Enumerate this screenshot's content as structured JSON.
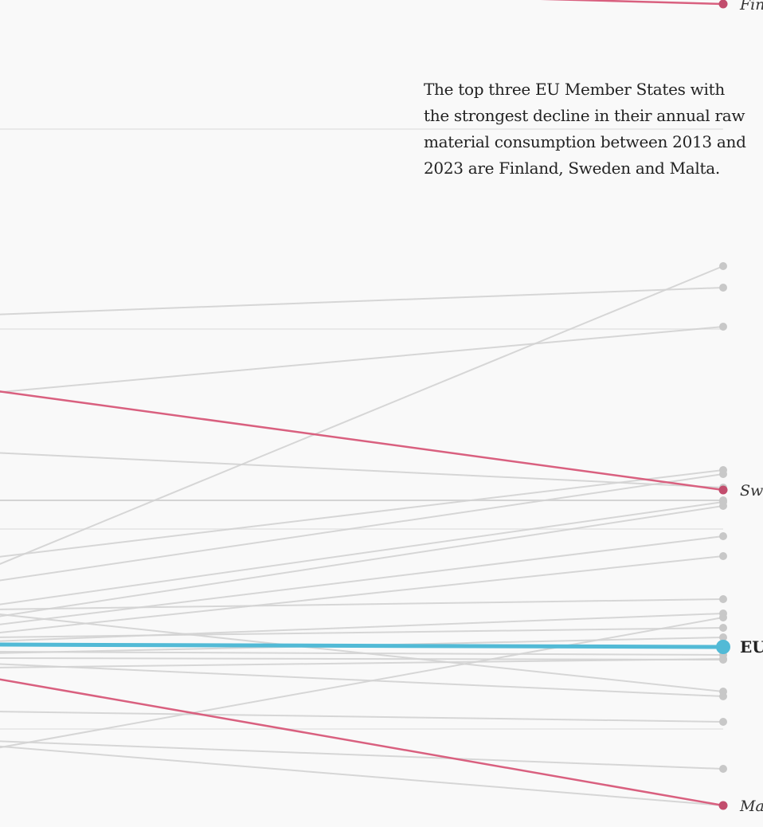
{
  "annotation": {
    "text": "The top three EU Member States with the strongest decline in their annual raw material consumption between 2013 and 2023 are Finland, Sweden and Malta."
  },
  "colors": {
    "background": "#f9f9f9",
    "highlight": "#d9607f",
    "eu": "#52bad6",
    "others": "#d3d3d3",
    "gridline": "#e4e4e4"
  },
  "chart_data": {
    "type": "line",
    "subtype": "slope",
    "description_visible": "Right portion of a slope chart; left endpoints cropped out of view",
    "y_axis": "raw material consumption (unlabeled in visible crop)",
    "grid": true,
    "highlighted": [
      {
        "label": "Fin",
        "role": "country",
        "left_y": -20,
        "right_y": 5
      },
      {
        "label": "Sw",
        "role": "country",
        "left_y": 490,
        "right_y": 615
      },
      {
        "label": "Ma",
        "role": "country",
        "left_y": 851,
        "right_y": 1011
      }
    ],
    "eu_average": {
      "label": "EU",
      "left_y": 809,
      "right_y": 812
    },
    "other_series": [
      {
        "left_y": 395,
        "right_y": 361
      },
      {
        "left_y": 493,
        "right_y": 410
      },
      {
        "left_y": 712,
        "right_y": 334
      },
      {
        "left_y": 568,
        "right_y": 612
      },
      {
        "left_y": 628,
        "right_y": 628
      },
      {
        "left_y": 700,
        "right_y": 590
      },
      {
        "left_y": 730,
        "right_y": 595
      },
      {
        "left_y": 760,
        "right_y": 630
      },
      {
        "left_y": 775,
        "right_y": 635
      },
      {
        "left_y": 785,
        "right_y": 673
      },
      {
        "left_y": 795,
        "right_y": 698
      },
      {
        "left_y": 765,
        "right_y": 752
      },
      {
        "left_y": 770,
        "right_y": 868
      },
      {
        "left_y": 805,
        "right_y": 770
      },
      {
        "left_y": 800,
        "right_y": 788
      },
      {
        "left_y": 820,
        "right_y": 800
      },
      {
        "left_y": 818,
        "right_y": 822
      },
      {
        "left_y": 826,
        "right_y": 828
      },
      {
        "left_y": 838,
        "right_y": 827
      },
      {
        "left_y": 833,
        "right_y": 874
      },
      {
        "left_y": 940,
        "right_y": 775
      },
      {
        "left_y": 893,
        "right_y": 906
      },
      {
        "left_y": 930,
        "right_y": 965
      },
      {
        "left_y": 936,
        "right_y": 1011
      }
    ],
    "gridlines_y": [
      162,
      413,
      628,
      664,
      915
    ]
  }
}
